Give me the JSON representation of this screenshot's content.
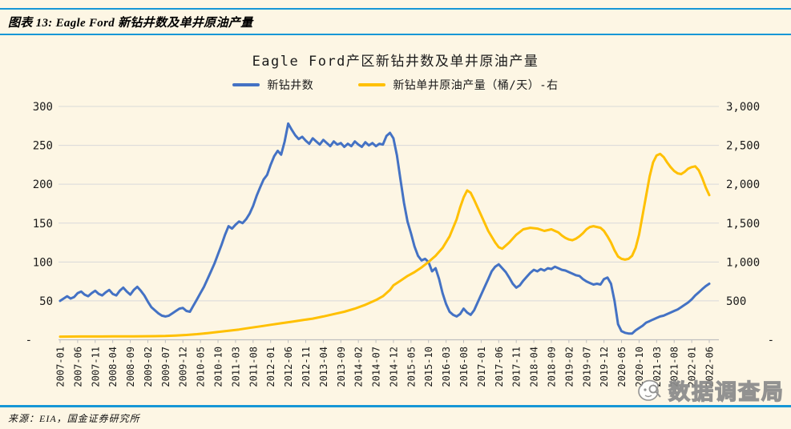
{
  "header": {
    "title": "图表 13: Eagle Ford 新钻井数及单井原油产量"
  },
  "source": "来源：EIA，国金证券研究所",
  "watermark": {
    "text": "数据调查局",
    "logo": "detective-magnifier-logo"
  },
  "colors": {
    "accent_rule": "#1697D6",
    "grid": "#D9D9D9",
    "axis": "#BFBFBF",
    "background": "#FDF6E4"
  },
  "chart_data": {
    "type": "line",
    "title": "Eagle Ford产区新钻井数及单井原油产量",
    "grid": "horizontal-only",
    "legend_position": "top-center",
    "x_unit": "month",
    "x_range": [
      "2007-01",
      "2022-06"
    ],
    "x_tick_labels": [
      "2007-01",
      "2007-06",
      "2007-11",
      "2008-04",
      "2008-09",
      "2009-02",
      "2009-07",
      "2009-12",
      "2010-05",
      "2010-10",
      "2011-03",
      "2011-08",
      "2012-01",
      "2012-06",
      "2012-11",
      "2013-04",
      "2013-09",
      "2014-02",
      "2014-07",
      "2014-12",
      "2015-05",
      "2015-10",
      "2016-03",
      "2016-08",
      "2017-01",
      "2017-06",
      "2017-11",
      "2018-04",
      "2018-09",
      "2019-02",
      "2019-07",
      "2019-12",
      "2020-05",
      "2020-10",
      "2021-03",
      "2021-08",
      "2022-01",
      "2022-06"
    ],
    "x_tick_step_months": 5,
    "axes": {
      "left": {
        "min": 0,
        "max": 300,
        "tick_labels_top_to_bottom": [
          "300",
          "250",
          "200",
          "150",
          "100",
          "50",
          "-"
        ]
      },
      "right": {
        "min": 0,
        "max": 3000,
        "tick_labels_top_to_bottom": [
          "3,000",
          "2,500",
          "2,000",
          "1,500",
          "1,000",
          "500",
          "-"
        ]
      }
    },
    "series": [
      {
        "name": "新钻井数",
        "axis": "left",
        "color": "#4472C4",
        "points": [
          [
            0,
            50
          ],
          [
            1,
            53
          ],
          [
            2,
            56
          ],
          [
            3,
            53
          ],
          [
            4,
            55
          ],
          [
            5,
            60
          ],
          [
            6,
            62
          ],
          [
            7,
            58
          ],
          [
            8,
            56
          ],
          [
            9,
            60
          ],
          [
            10,
            63
          ],
          [
            11,
            59
          ],
          [
            12,
            57
          ],
          [
            13,
            61
          ],
          [
            14,
            64
          ],
          [
            15,
            59
          ],
          [
            16,
            57
          ],
          [
            17,
            63
          ],
          [
            18,
            67
          ],
          [
            19,
            62
          ],
          [
            20,
            58
          ],
          [
            21,
            64
          ],
          [
            22,
            68
          ],
          [
            23,
            63
          ],
          [
            24,
            57
          ],
          [
            25,
            49
          ],
          [
            26,
            42
          ],
          [
            27,
            38
          ],
          [
            28,
            34
          ],
          [
            29,
            31
          ],
          [
            30,
            30
          ],
          [
            31,
            31
          ],
          [
            32,
            34
          ],
          [
            33,
            37
          ],
          [
            34,
            40
          ],
          [
            35,
            41
          ],
          [
            36,
            37
          ],
          [
            37,
            36
          ],
          [
            38,
            44
          ],
          [
            39,
            52
          ],
          [
            40,
            60
          ],
          [
            41,
            68
          ],
          [
            42,
            78
          ],
          [
            43,
            88
          ],
          [
            44,
            98
          ],
          [
            45,
            110
          ],
          [
            46,
            122
          ],
          [
            47,
            135
          ],
          [
            48,
            146
          ],
          [
            49,
            143
          ],
          [
            50,
            148
          ],
          [
            51,
            152
          ],
          [
            52,
            150
          ],
          [
            53,
            155
          ],
          [
            54,
            162
          ],
          [
            55,
            172
          ],
          [
            56,
            185
          ],
          [
            57,
            196
          ],
          [
            58,
            206
          ],
          [
            59,
            212
          ],
          [
            60,
            225
          ],
          [
            61,
            236
          ],
          [
            62,
            243
          ],
          [
            63,
            238
          ],
          [
            64,
            255
          ],
          [
            65,
            278
          ],
          [
            66,
            270
          ],
          [
            67,
            263
          ],
          [
            68,
            258
          ],
          [
            69,
            261
          ],
          [
            70,
            256
          ],
          [
            71,
            252
          ],
          [
            72,
            259
          ],
          [
            73,
            255
          ],
          [
            74,
            251
          ],
          [
            75,
            257
          ],
          [
            76,
            253
          ],
          [
            77,
            249
          ],
          [
            78,
            255
          ],
          [
            79,
            251
          ],
          [
            80,
            253
          ],
          [
            81,
            248
          ],
          [
            82,
            252
          ],
          [
            83,
            249
          ],
          [
            84,
            255
          ],
          [
            85,
            251
          ],
          [
            86,
            248
          ],
          [
            87,
            254
          ],
          [
            88,
            250
          ],
          [
            89,
            253
          ],
          [
            90,
            249
          ],
          [
            91,
            252
          ],
          [
            92,
            251
          ],
          [
            93,
            262
          ],
          [
            94,
            266
          ],
          [
            95,
            259
          ],
          [
            96,
            237
          ],
          [
            97,
            206
          ],
          [
            98,
            176
          ],
          [
            99,
            152
          ],
          [
            100,
            137
          ],
          [
            101,
            120
          ],
          [
            102,
            108
          ],
          [
            103,
            102
          ],
          [
            104,
            104
          ],
          [
            105,
            100
          ],
          [
            106,
            88
          ],
          [
            107,
            92
          ],
          [
            108,
            78
          ],
          [
            109,
            60
          ],
          [
            110,
            46
          ],
          [
            111,
            36
          ],
          [
            112,
            32
          ],
          [
            113,
            30
          ],
          [
            114,
            33
          ],
          [
            115,
            40
          ],
          [
            116,
            35
          ],
          [
            117,
            32
          ],
          [
            118,
            38
          ],
          [
            119,
            48
          ],
          [
            120,
            58
          ],
          [
            121,
            68
          ],
          [
            122,
            78
          ],
          [
            123,
            88
          ],
          [
            124,
            94
          ],
          [
            125,
            97
          ],
          [
            126,
            92
          ],
          [
            127,
            87
          ],
          [
            128,
            80
          ],
          [
            129,
            72
          ],
          [
            130,
            67
          ],
          [
            131,
            70
          ],
          [
            132,
            76
          ],
          [
            133,
            81
          ],
          [
            134,
            86
          ],
          [
            135,
            90
          ],
          [
            136,
            88
          ],
          [
            137,
            91
          ],
          [
            138,
            89
          ],
          [
            139,
            92
          ],
          [
            140,
            91
          ],
          [
            141,
            94
          ],
          [
            142,
            92
          ],
          [
            143,
            90
          ],
          [
            144,
            89
          ],
          [
            145,
            87
          ],
          [
            146,
            85
          ],
          [
            147,
            83
          ],
          [
            148,
            82
          ],
          [
            149,
            78
          ],
          [
            150,
            75
          ],
          [
            151,
            73
          ],
          [
            152,
            71
          ],
          [
            153,
            72
          ],
          [
            154,
            71
          ],
          [
            155,
            78
          ],
          [
            156,
            80
          ],
          [
            157,
            72
          ],
          [
            158,
            50
          ],
          [
            159,
            20
          ],
          [
            160,
            11
          ],
          [
            161,
            9
          ],
          [
            162,
            8
          ],
          [
            163,
            8
          ],
          [
            164,
            12
          ],
          [
            165,
            15
          ],
          [
            166,
            18
          ],
          [
            167,
            22
          ],
          [
            168,
            24
          ],
          [
            169,
            26
          ],
          [
            170,
            28
          ],
          [
            171,
            30
          ],
          [
            172,
            31
          ],
          [
            173,
            33
          ],
          [
            174,
            35
          ],
          [
            175,
            37
          ],
          [
            176,
            39
          ],
          [
            177,
            42
          ],
          [
            178,
            45
          ],
          [
            179,
            48
          ],
          [
            180,
            52
          ],
          [
            181,
            57
          ],
          [
            182,
            61
          ],
          [
            183,
            65
          ],
          [
            184,
            69
          ],
          [
            185,
            72
          ]
        ]
      },
      {
        "name": "新钻单井原油产量（桶/天）-右",
        "axis": "right",
        "color": "#FFC000",
        "points": [
          [
            0,
            40
          ],
          [
            3,
            41
          ],
          [
            6,
            42
          ],
          [
            9,
            42
          ],
          [
            12,
            42
          ],
          [
            15,
            43
          ],
          [
            18,
            44
          ],
          [
            21,
            44
          ],
          [
            24,
            45
          ],
          [
            27,
            46
          ],
          [
            30,
            48
          ],
          [
            33,
            55
          ],
          [
            36,
            62
          ],
          [
            39,
            72
          ],
          [
            42,
            85
          ],
          [
            45,
            100
          ],
          [
            48,
            115
          ],
          [
            51,
            132
          ],
          [
            54,
            152
          ],
          [
            57,
            172
          ],
          [
            60,
            192
          ],
          [
            63,
            212
          ],
          [
            66,
            232
          ],
          [
            69,
            252
          ],
          [
            72,
            272
          ],
          [
            75,
            300
          ],
          [
            78,
            330
          ],
          [
            81,
            360
          ],
          [
            84,
            400
          ],
          [
            87,
            450
          ],
          [
            90,
            510
          ],
          [
            92,
            560
          ],
          [
            94,
            640
          ],
          [
            95,
            700
          ],
          [
            97,
            760
          ],
          [
            99,
            820
          ],
          [
            101,
            870
          ],
          [
            103,
            930
          ],
          [
            105,
            1000
          ],
          [
            107,
            1080
          ],
          [
            109,
            1180
          ],
          [
            111,
            1330
          ],
          [
            113,
            1550
          ],
          [
            114,
            1700
          ],
          [
            115,
            1830
          ],
          [
            116,
            1920
          ],
          [
            117,
            1890
          ],
          [
            118,
            1800
          ],
          [
            120,
            1600
          ],
          [
            122,
            1400
          ],
          [
            124,
            1250
          ],
          [
            125,
            1190
          ],
          [
            126,
            1170
          ],
          [
            128,
            1250
          ],
          [
            130,
            1350
          ],
          [
            132,
            1420
          ],
          [
            134,
            1440
          ],
          [
            136,
            1430
          ],
          [
            138,
            1400
          ],
          [
            140,
            1420
          ],
          [
            141,
            1400
          ],
          [
            142,
            1380
          ],
          [
            143,
            1340
          ],
          [
            144,
            1310
          ],
          [
            145,
            1290
          ],
          [
            146,
            1280
          ],
          [
            147,
            1300
          ],
          [
            148,
            1330
          ],
          [
            149,
            1370
          ],
          [
            150,
            1420
          ],
          [
            151,
            1450
          ],
          [
            152,
            1460
          ],
          [
            153,
            1450
          ],
          [
            154,
            1440
          ],
          [
            155,
            1400
          ],
          [
            156,
            1330
          ],
          [
            157,
            1250
          ],
          [
            158,
            1150
          ],
          [
            159,
            1070
          ],
          [
            160,
            1040
          ],
          [
            161,
            1030
          ],
          [
            162,
            1040
          ],
          [
            163,
            1080
          ],
          [
            164,
            1180
          ],
          [
            165,
            1350
          ],
          [
            166,
            1600
          ],
          [
            167,
            1850
          ],
          [
            168,
            2100
          ],
          [
            169,
            2280
          ],
          [
            170,
            2370
          ],
          [
            171,
            2390
          ],
          [
            172,
            2350
          ],
          [
            173,
            2280
          ],
          [
            174,
            2220
          ],
          [
            175,
            2170
          ],
          [
            176,
            2140
          ],
          [
            177,
            2130
          ],
          [
            178,
            2160
          ],
          [
            179,
            2200
          ],
          [
            180,
            2220
          ],
          [
            181,
            2230
          ],
          [
            182,
            2180
          ],
          [
            183,
            2080
          ],
          [
            184,
            1960
          ],
          [
            185,
            1860
          ]
        ]
      }
    ]
  }
}
